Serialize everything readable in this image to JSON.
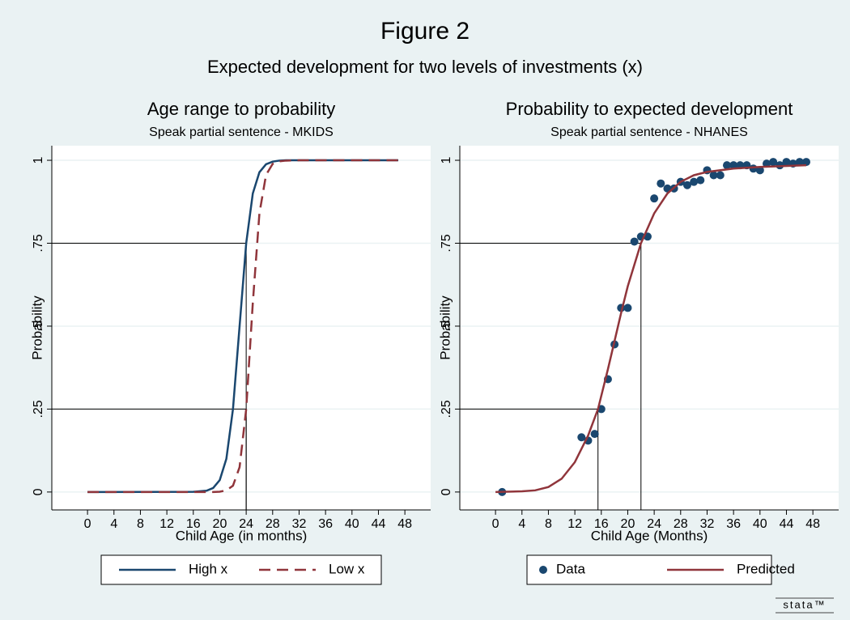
{
  "title": "Figure 2",
  "subtitle": "Expected development for two levels of investments (x)",
  "logo": "stata™",
  "chart_data": [
    {
      "type": "line",
      "title": "Age range to probability",
      "subtitle": "Speak partial sentence - MKIDS",
      "xlabel": "Child Age (in months)",
      "ylabel": "Probability",
      "xlim": [
        -5.4,
        51.9
      ],
      "ylim": [
        -0.054,
        1.044
      ],
      "xticks": [
        0,
        4,
        8,
        12,
        16,
        20,
        24,
        28,
        32,
        36,
        40,
        44,
        48
      ],
      "yticks": [
        0,
        {
          "value": 0.25,
          "label": ".25"
        },
        {
          "value": 0.5,
          "label": ".5"
        },
        {
          "value": 0.75,
          "label": ".75"
        },
        1
      ],
      "grid": true,
      "reference_lines": [
        {
          "x": 24,
          "y": 0.75
        },
        {
          "x": 24,
          "y": 0.25
        }
      ],
      "series": [
        {
          "name": "High x",
          "type": "line",
          "color": "#1a476f",
          "dash": "solid",
          "x": [
            0,
            16,
            18,
            19,
            20,
            21,
            22,
            23,
            24,
            25,
            26,
            27,
            28,
            29,
            30,
            32,
            47
          ],
          "values": [
            0,
            0.0005,
            0.004,
            0.012,
            0.036,
            0.1,
            0.25,
            0.5,
            0.75,
            0.9,
            0.964,
            0.988,
            0.996,
            0.999,
            1,
            1,
            1
          ]
        },
        {
          "name": "Low x",
          "type": "line",
          "color": "#90353b",
          "dash": "dashed",
          "x": [
            0,
            16,
            18,
            19,
            20,
            21,
            22,
            23,
            24,
            25,
            26,
            27,
            28,
            29,
            30,
            32,
            47
          ],
          "values": [
            0,
            0,
            0,
            0,
            0.001,
            0.005,
            0.019,
            0.075,
            0.25,
            0.57,
            0.84,
            0.956,
            0.989,
            0.997,
            0.999,
            1,
            1
          ]
        }
      ]
    },
    {
      "type": "line",
      "title": "Probability to expected development",
      "subtitle": "Speak partial sentence - NHANES",
      "xlabel": "Child Age (Months)",
      "ylabel": "Probability",
      "xlim": [
        -5.4,
        51.9
      ],
      "ylim": [
        -0.054,
        1.044
      ],
      "xticks": [
        0,
        4,
        8,
        12,
        16,
        20,
        24,
        28,
        32,
        36,
        40,
        44,
        48
      ],
      "yticks": [
        0,
        {
          "value": 0.25,
          "label": ".25"
        },
        {
          "value": 0.5,
          "label": ".5"
        },
        {
          "value": 0.75,
          "label": ".75"
        },
        1
      ],
      "grid": true,
      "reference_lines": [
        {
          "x": 22,
          "y": 0.75
        },
        {
          "x": 15.5,
          "y": 0.25
        }
      ],
      "series": [
        {
          "name": "Data",
          "type": "scatter",
          "color": "#1a476f",
          "x": [
            1,
            13,
            14,
            15,
            16,
            17,
            18,
            19,
            20,
            21,
            22,
            23,
            24,
            25,
            26,
            27,
            28,
            29,
            30,
            31,
            32,
            33,
            34,
            35,
            36,
            37,
            38,
            39,
            40,
            41,
            42,
            43,
            44,
            45,
            46,
            47
          ],
          "values": [
            0,
            0.165,
            0.155,
            0.175,
            0.25,
            0.34,
            0.445,
            0.555,
            0.555,
            0.755,
            0.77,
            0.77,
            0.885,
            0.93,
            0.915,
            0.915,
            0.935,
            0.925,
            0.935,
            0.94,
            0.97,
            0.955,
            0.955,
            0.985,
            0.985,
            0.985,
            0.985,
            0.975,
            0.97,
            0.99,
            0.995,
            0.985,
            0.995,
            0.99,
            0.995,
            0.995
          ]
        },
        {
          "name": "Predicted",
          "type": "line",
          "color": "#90353b",
          "dash": "solid",
          "x": [
            0,
            4,
            6,
            8,
            10,
            12,
            14,
            15.5,
            17,
            19,
            20,
            22,
            24,
            26,
            28,
            30,
            32,
            36,
            40,
            47
          ],
          "values": [
            0,
            0.002,
            0.005,
            0.015,
            0.04,
            0.09,
            0.17,
            0.25,
            0.37,
            0.54,
            0.62,
            0.75,
            0.84,
            0.9,
            0.935,
            0.955,
            0.965,
            0.975,
            0.98,
            0.985
          ]
        }
      ]
    }
  ]
}
